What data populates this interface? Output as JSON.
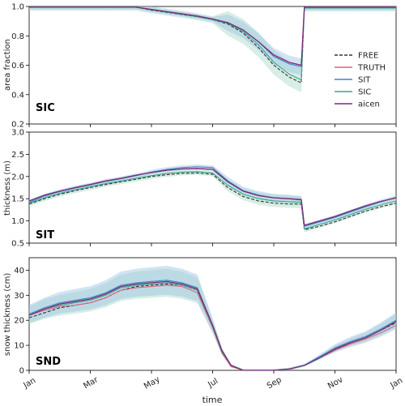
{
  "chart_data": [
    {
      "type": "line",
      "panel_label": "SIC",
      "ylabel": "area fraction",
      "xlabel": "",
      "ylim": [
        0.2,
        1.0
      ],
      "yticks": [
        0.2,
        0.4,
        0.6,
        0.8,
        1.0
      ],
      "ytick_labels": [
        "0.2",
        "0.4",
        "0.6",
        "0.8",
        "1.0"
      ],
      "x_month_index": [
        0,
        0.5,
        1,
        1.5,
        2,
        2.5,
        3,
        3.5,
        4,
        4.5,
        5,
        5.5,
        6,
        6.5,
        7,
        7.5,
        8,
        8.5,
        8.9,
        9.0,
        9.5,
        10,
        10.5,
        11,
        11.5,
        12
      ],
      "series": [
        {
          "name": "FREE",
          "values": [
            0.995,
            0.995,
            0.995,
            0.995,
            0.995,
            0.995,
            0.995,
            0.995,
            0.975,
            0.96,
            0.945,
            0.93,
            0.91,
            0.88,
            0.82,
            0.72,
            0.6,
            0.52,
            0.48,
            0.99,
            0.99,
            0.99,
            0.99,
            0.99,
            0.99,
            0.99
          ]
        },
        {
          "name": "TRUTH",
          "values": [
            0.995,
            0.995,
            0.995,
            0.995,
            0.995,
            0.995,
            0.995,
            0.995,
            0.98,
            0.965,
            0.95,
            0.935,
            0.915,
            0.89,
            0.84,
            0.76,
            0.67,
            0.62,
            0.6,
            0.995,
            0.995,
            0.995,
            0.995,
            0.995,
            0.995,
            0.995
          ]
        },
        {
          "name": "SIT",
          "values": [
            0.995,
            0.995,
            0.995,
            0.995,
            0.995,
            0.995,
            0.995,
            0.995,
            0.978,
            0.963,
            0.948,
            0.932,
            0.912,
            0.89,
            0.84,
            0.76,
            0.66,
            0.61,
            0.59,
            0.99,
            0.99,
            0.99,
            0.99,
            0.99,
            0.99,
            0.99
          ]
        },
        {
          "name": "SIC",
          "values": [
            0.995,
            0.995,
            0.995,
            0.995,
            0.995,
            0.995,
            0.995,
            0.995,
            0.978,
            0.962,
            0.947,
            0.93,
            0.91,
            0.885,
            0.83,
            0.74,
            0.62,
            0.54,
            0.5,
            0.99,
            0.99,
            0.99,
            0.99,
            0.99,
            0.99,
            0.99
          ]
        },
        {
          "name": "aicen",
          "values": [
            0.995,
            0.995,
            0.995,
            0.995,
            0.995,
            0.995,
            0.995,
            0.995,
            0.98,
            0.965,
            0.95,
            0.935,
            0.915,
            0.89,
            0.84,
            0.76,
            0.67,
            0.62,
            0.6,
            0.995,
            0.995,
            0.995,
            0.995,
            0.995,
            0.995,
            0.995
          ]
        }
      ]
    },
    {
      "type": "line",
      "panel_label": "SIT",
      "ylabel": "thickness (m)",
      "xlabel": "",
      "ylim": [
        0.5,
        3.0
      ],
      "yticks": [
        0.5,
        1.0,
        1.5,
        2.0,
        2.5,
        3.0
      ],
      "ytick_labels": [
        "0.5",
        "1.0",
        "1.5",
        "2.0",
        "2.5",
        "3.0"
      ],
      "x_month_index": [
        0,
        0.5,
        1,
        1.5,
        2,
        2.5,
        3,
        3.5,
        4,
        4.5,
        5,
        5.5,
        6,
        6.5,
        7,
        7.5,
        8,
        8.5,
        8.9,
        9.0,
        9.5,
        10,
        10.5,
        11,
        11.5,
        12
      ],
      "series": [
        {
          "name": "FREE",
          "values": [
            1.38,
            1.5,
            1.6,
            1.68,
            1.75,
            1.82,
            1.88,
            1.94,
            2.0,
            2.04,
            2.07,
            2.08,
            2.05,
            1.75,
            1.55,
            1.45,
            1.4,
            1.38,
            1.38,
            0.8,
            0.88,
            0.98,
            1.1,
            1.22,
            1.32,
            1.4
          ]
        },
        {
          "name": "TRUTH",
          "values": [
            1.45,
            1.58,
            1.67,
            1.75,
            1.82,
            1.9,
            1.96,
            2.03,
            2.09,
            2.14,
            2.17,
            2.18,
            2.16,
            1.88,
            1.67,
            1.57,
            1.52,
            1.5,
            1.48,
            0.9,
            1.0,
            1.1,
            1.22,
            1.34,
            1.44,
            1.52
          ]
        },
        {
          "name": "SIT",
          "values": [
            1.42,
            1.56,
            1.66,
            1.74,
            1.81,
            1.89,
            1.95,
            2.02,
            2.1,
            2.16,
            2.2,
            2.22,
            2.2,
            1.9,
            1.68,
            1.58,
            1.52,
            1.5,
            1.47,
            0.88,
            0.98,
            1.08,
            1.2,
            1.32,
            1.43,
            1.53
          ]
        },
        {
          "name": "SIC",
          "values": [
            1.4,
            1.52,
            1.62,
            1.7,
            1.77,
            1.84,
            1.9,
            1.96,
            2.02,
            2.07,
            2.1,
            2.11,
            2.08,
            1.8,
            1.6,
            1.5,
            1.45,
            1.43,
            1.42,
            0.82,
            0.92,
            1.02,
            1.14,
            1.26,
            1.36,
            1.45
          ]
        },
        {
          "name": "aicen",
          "values": [
            1.45,
            1.58,
            1.67,
            1.75,
            1.82,
            1.9,
            1.96,
            2.03,
            2.09,
            2.14,
            2.17,
            2.18,
            2.16,
            1.88,
            1.67,
            1.57,
            1.52,
            1.5,
            1.48,
            0.9,
            1.0,
            1.1,
            1.22,
            1.34,
            1.44,
            1.52
          ]
        }
      ]
    },
    {
      "type": "line",
      "panel_label": "SND",
      "ylabel": "snow thickness (cm)",
      "xlabel": "time",
      "ylim": [
        0,
        45
      ],
      "yticks": [
        0,
        10,
        20,
        30,
        40
      ],
      "ytick_labels": [
        "0",
        "10",
        "20",
        "30",
        "40"
      ],
      "x_month_index": [
        0,
        0.5,
        1,
        1.5,
        2,
        2.5,
        3,
        3.5,
        4,
        4.5,
        5,
        5.5,
        6,
        6.3,
        6.6,
        7,
        7.5,
        8,
        8.5,
        9,
        9.5,
        10,
        10.5,
        11,
        11.5,
        12
      ],
      "series": [
        {
          "name": "FREE",
          "values": [
            21,
            23,
            25,
            26,
            27,
            29,
            32,
            33.5,
            34,
            34.5,
            34,
            32,
            18,
            8,
            2,
            0,
            0,
            0,
            0.5,
            2,
            5,
            8,
            11,
            13,
            16,
            19
          ]
        },
        {
          "name": "TRUTH",
          "values": [
            22,
            24,
            25.5,
            26,
            27,
            29,
            32,
            33,
            33.5,
            34,
            33.5,
            31,
            17,
            7,
            1.5,
            0,
            0,
            0,
            0.5,
            2,
            5,
            8,
            10.5,
            12.5,
            15,
            18
          ]
        },
        {
          "name": "SIT",
          "values": [
            22.5,
            25,
            27,
            28,
            29,
            31,
            34,
            35,
            35.5,
            36,
            35,
            33,
            18,
            8,
            2,
            0,
            0,
            0,
            0.5,
            2,
            5.5,
            9,
            11.5,
            13.5,
            16.5,
            20
          ]
        },
        {
          "name": "SIC",
          "values": [
            22,
            24.5,
            26,
            27,
            28,
            30,
            33,
            34,
            34.5,
            35,
            34,
            32,
            17.5,
            7.5,
            2,
            0,
            0,
            0,
            0.5,
            2,
            5,
            8.5,
            11,
            13,
            16,
            19.5
          ]
        },
        {
          "name": "aicen",
          "values": [
            22,
            24.5,
            26.5,
            27.5,
            28.5,
            30.5,
            33.5,
            34.5,
            35,
            35.5,
            34.5,
            32.5,
            18,
            8,
            2,
            0,
            0,
            0,
            0.5,
            2,
            5,
            8.5,
            11,
            13,
            16,
            19.5
          ]
        }
      ]
    }
  ],
  "x_axis": {
    "xlabel": "time",
    "tick_labels": [
      "Jan",
      "Mar",
      "May",
      "Jul",
      "Sep",
      "Nov",
      "Jan"
    ],
    "tick_month_index": [
      0,
      2,
      4,
      6,
      8,
      10,
      12
    ]
  },
  "legend": {
    "placement": "right (top panel)",
    "entries": [
      "FREE",
      "TRUTH",
      "SIT",
      "SIC",
      "aicen"
    ]
  },
  "colors": {
    "FREE": "#333333",
    "TRUTH": "#e06080",
    "SIT": "#3a86c8",
    "SIC": "#3aa68a",
    "aicen": "#7a2a7a",
    "band_SIC": "#a8d8c8",
    "band_SIT": "#9cc4e0"
  }
}
